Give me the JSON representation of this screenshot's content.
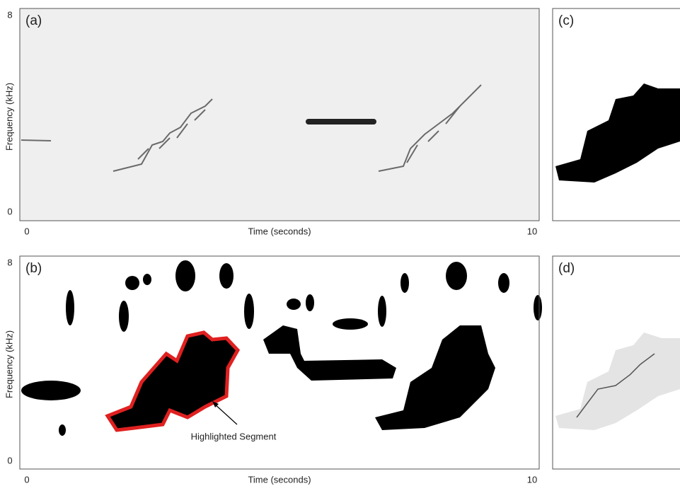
{
  "panels": [
    {
      "label": "(a)",
      "x_label": "Time (seconds)",
      "y_label": "Frequency (kHz)",
      "x_ticks": [
        0,
        10
      ],
      "y_ticks": [
        0,
        8
      ]
    },
    {
      "label": "(b)",
      "x_label": "Time (seconds)",
      "y_label": "Frequency (kHz)",
      "x_ticks": [
        0,
        10
      ],
      "y_ticks": [
        0,
        8
      ],
      "annotation": "Highlighted Segment"
    },
    {
      "label": "(c)"
    },
    {
      "label": "(d)"
    }
  ]
}
